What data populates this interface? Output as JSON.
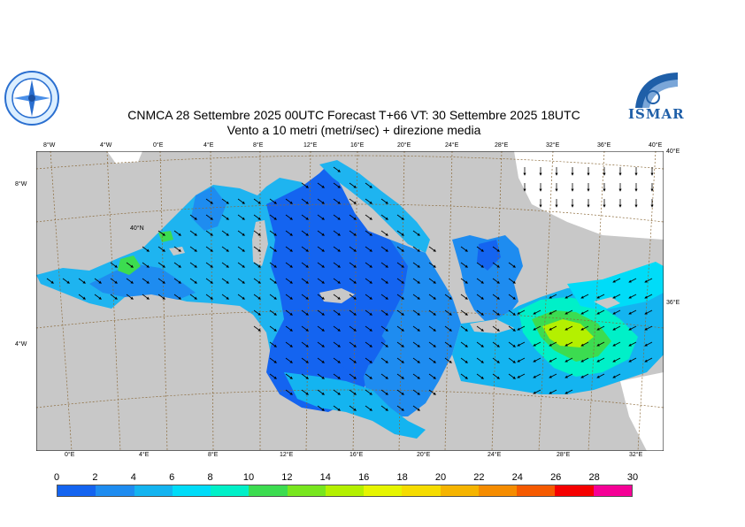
{
  "header": {
    "title_line1": "CNMCA 28 Settembre 2025 00UTC Forecast T+66 VT: 30 Settembre 2025 18UTC",
    "title_line2": "Vento a 10 metri (metri/sec) + direzione media"
  },
  "logos": {
    "left": {
      "name": "cnmca-emblem",
      "text": ""
    },
    "right": {
      "name": "ismar-logo",
      "text": "ISMAR"
    }
  },
  "map": {
    "top_lon_labels": [
      "8°W",
      "4°W",
      "0°E",
      "4°E",
      "8°E",
      "12°E",
      "16°E",
      "20°E",
      "24°E",
      "28°E",
      "32°E",
      "36°E",
      "40°E"
    ],
    "bottom_lon_labels": [
      "0°E",
      "4°E",
      "8°E",
      "12°E",
      "16°E",
      "20°E",
      "24°E",
      "28°E",
      "32°E"
    ],
    "left_lat_labels": [
      "8°W",
      "4°W"
    ],
    "right_lat_labels": [
      "40°E",
      "36°E"
    ],
    "inner_lat_label": "40°N",
    "colors": {
      "land": "#c8c8c8",
      "background": "#ffffff",
      "grid": "#8b6a3a"
    }
  },
  "legend": {
    "unit": "m/s",
    "labels": [
      "0",
      "2",
      "4",
      "6",
      "8",
      "10",
      "12",
      "14",
      "16",
      "18",
      "20",
      "22",
      "24",
      "26",
      "28",
      "30"
    ],
    "colors": [
      "#1464f0",
      "#1e8cf0",
      "#14b4f0",
      "#00dcf8",
      "#00f0c8",
      "#3cdc50",
      "#78e61e",
      "#b4f000",
      "#e6f500",
      "#f5dc00",
      "#f5b400",
      "#f58c00",
      "#f55a00",
      "#f50000",
      "#f50096"
    ]
  }
}
